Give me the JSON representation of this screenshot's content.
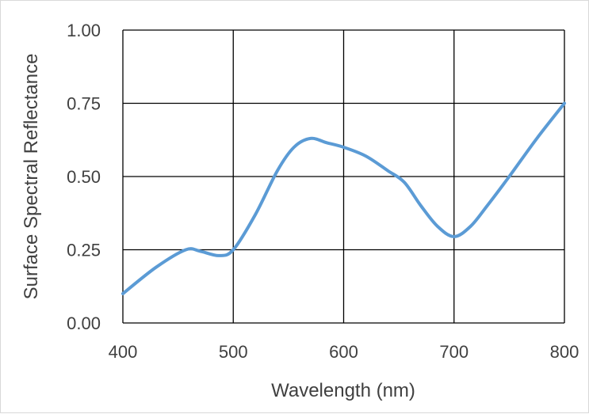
{
  "chart_data": {
    "type": "line",
    "title": "",
    "xlabel": "Wavelength (nm)",
    "ylabel": "Surface Spectral Reflectance",
    "xlim": [
      400,
      800
    ],
    "ylim": [
      0,
      1
    ],
    "x_ticks": [
      "400",
      "500",
      "600",
      "700",
      "800"
    ],
    "y_ticks": [
      "0.00",
      "0.25",
      "0.50",
      "0.75",
      "1.00"
    ],
    "grid": true,
    "legend": "none",
    "series": [
      {
        "color": "#5b9bd5",
        "x": [
          400,
          430,
          457,
          470,
          487,
          500,
          520,
          540,
          555,
          570,
          585,
          600,
          620,
          640,
          655,
          670,
          685,
          700,
          715,
          730,
          750,
          775,
          800
        ],
        "y": [
          0.1,
          0.19,
          0.25,
          0.245,
          0.23,
          0.25,
          0.37,
          0.52,
          0.6,
          0.63,
          0.615,
          0.6,
          0.57,
          0.52,
          0.48,
          0.4,
          0.33,
          0.295,
          0.33,
          0.4,
          0.5,
          0.63,
          0.75
        ]
      }
    ]
  }
}
